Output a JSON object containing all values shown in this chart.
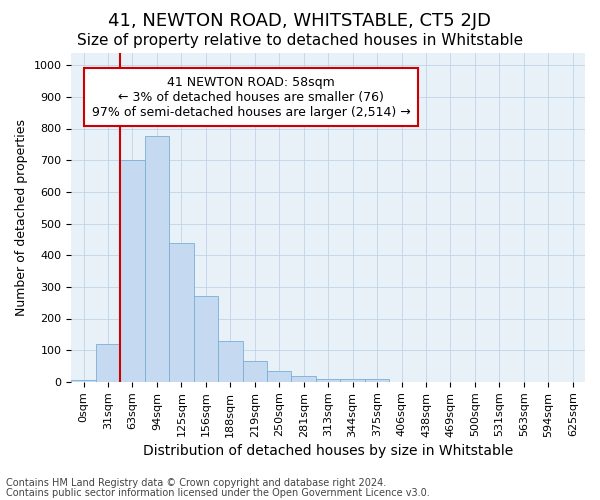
{
  "title": "41, NEWTON ROAD, WHITSTABLE, CT5 2JD",
  "subtitle": "Size of property relative to detached houses in Whitstable",
  "xlabel": "Distribution of detached houses by size in Whitstable",
  "ylabel": "Number of detached properties",
  "categories": [
    "0sqm",
    "31sqm",
    "63sqm",
    "94sqm",
    "125sqm",
    "156sqm",
    "188sqm",
    "219sqm",
    "250sqm",
    "281sqm",
    "313sqm",
    "344sqm",
    "375sqm",
    "406sqm",
    "438sqm",
    "469sqm",
    "500sqm",
    "531sqm",
    "563sqm",
    "594sqm",
    "625sqm"
  ],
  "values": [
    5,
    120,
    700,
    775,
    440,
    270,
    130,
    65,
    35,
    20,
    10,
    10,
    10,
    0,
    0,
    0,
    0,
    0,
    0,
    0,
    0
  ],
  "bar_color": "#c5daf0",
  "bar_edge_color": "#7aafd4",
  "vline_color": "#cc0000",
  "vline_index": 2,
  "annotation_text": "41 NEWTON ROAD: 58sqm\n← 3% of detached houses are smaller (76)\n97% of semi-detached houses are larger (2,514) →",
  "annotation_box_facecolor": "#ffffff",
  "annotation_box_edgecolor": "#cc0000",
  "annotation_fontsize": 9,
  "ylim": [
    0,
    1040
  ],
  "yticks": [
    0,
    100,
    200,
    300,
    400,
    500,
    600,
    700,
    800,
    900,
    1000
  ],
  "grid_color": "#c0d4e8",
  "bg_color": "#e8f0f8",
  "footer_line1": "Contains HM Land Registry data © Crown copyright and database right 2024.",
  "footer_line2": "Contains public sector information licensed under the Open Government Licence v3.0.",
  "title_fontsize": 13,
  "subtitle_fontsize": 11,
  "xlabel_fontsize": 10,
  "ylabel_fontsize": 9,
  "tick_fontsize": 8,
  "footer_fontsize": 7
}
